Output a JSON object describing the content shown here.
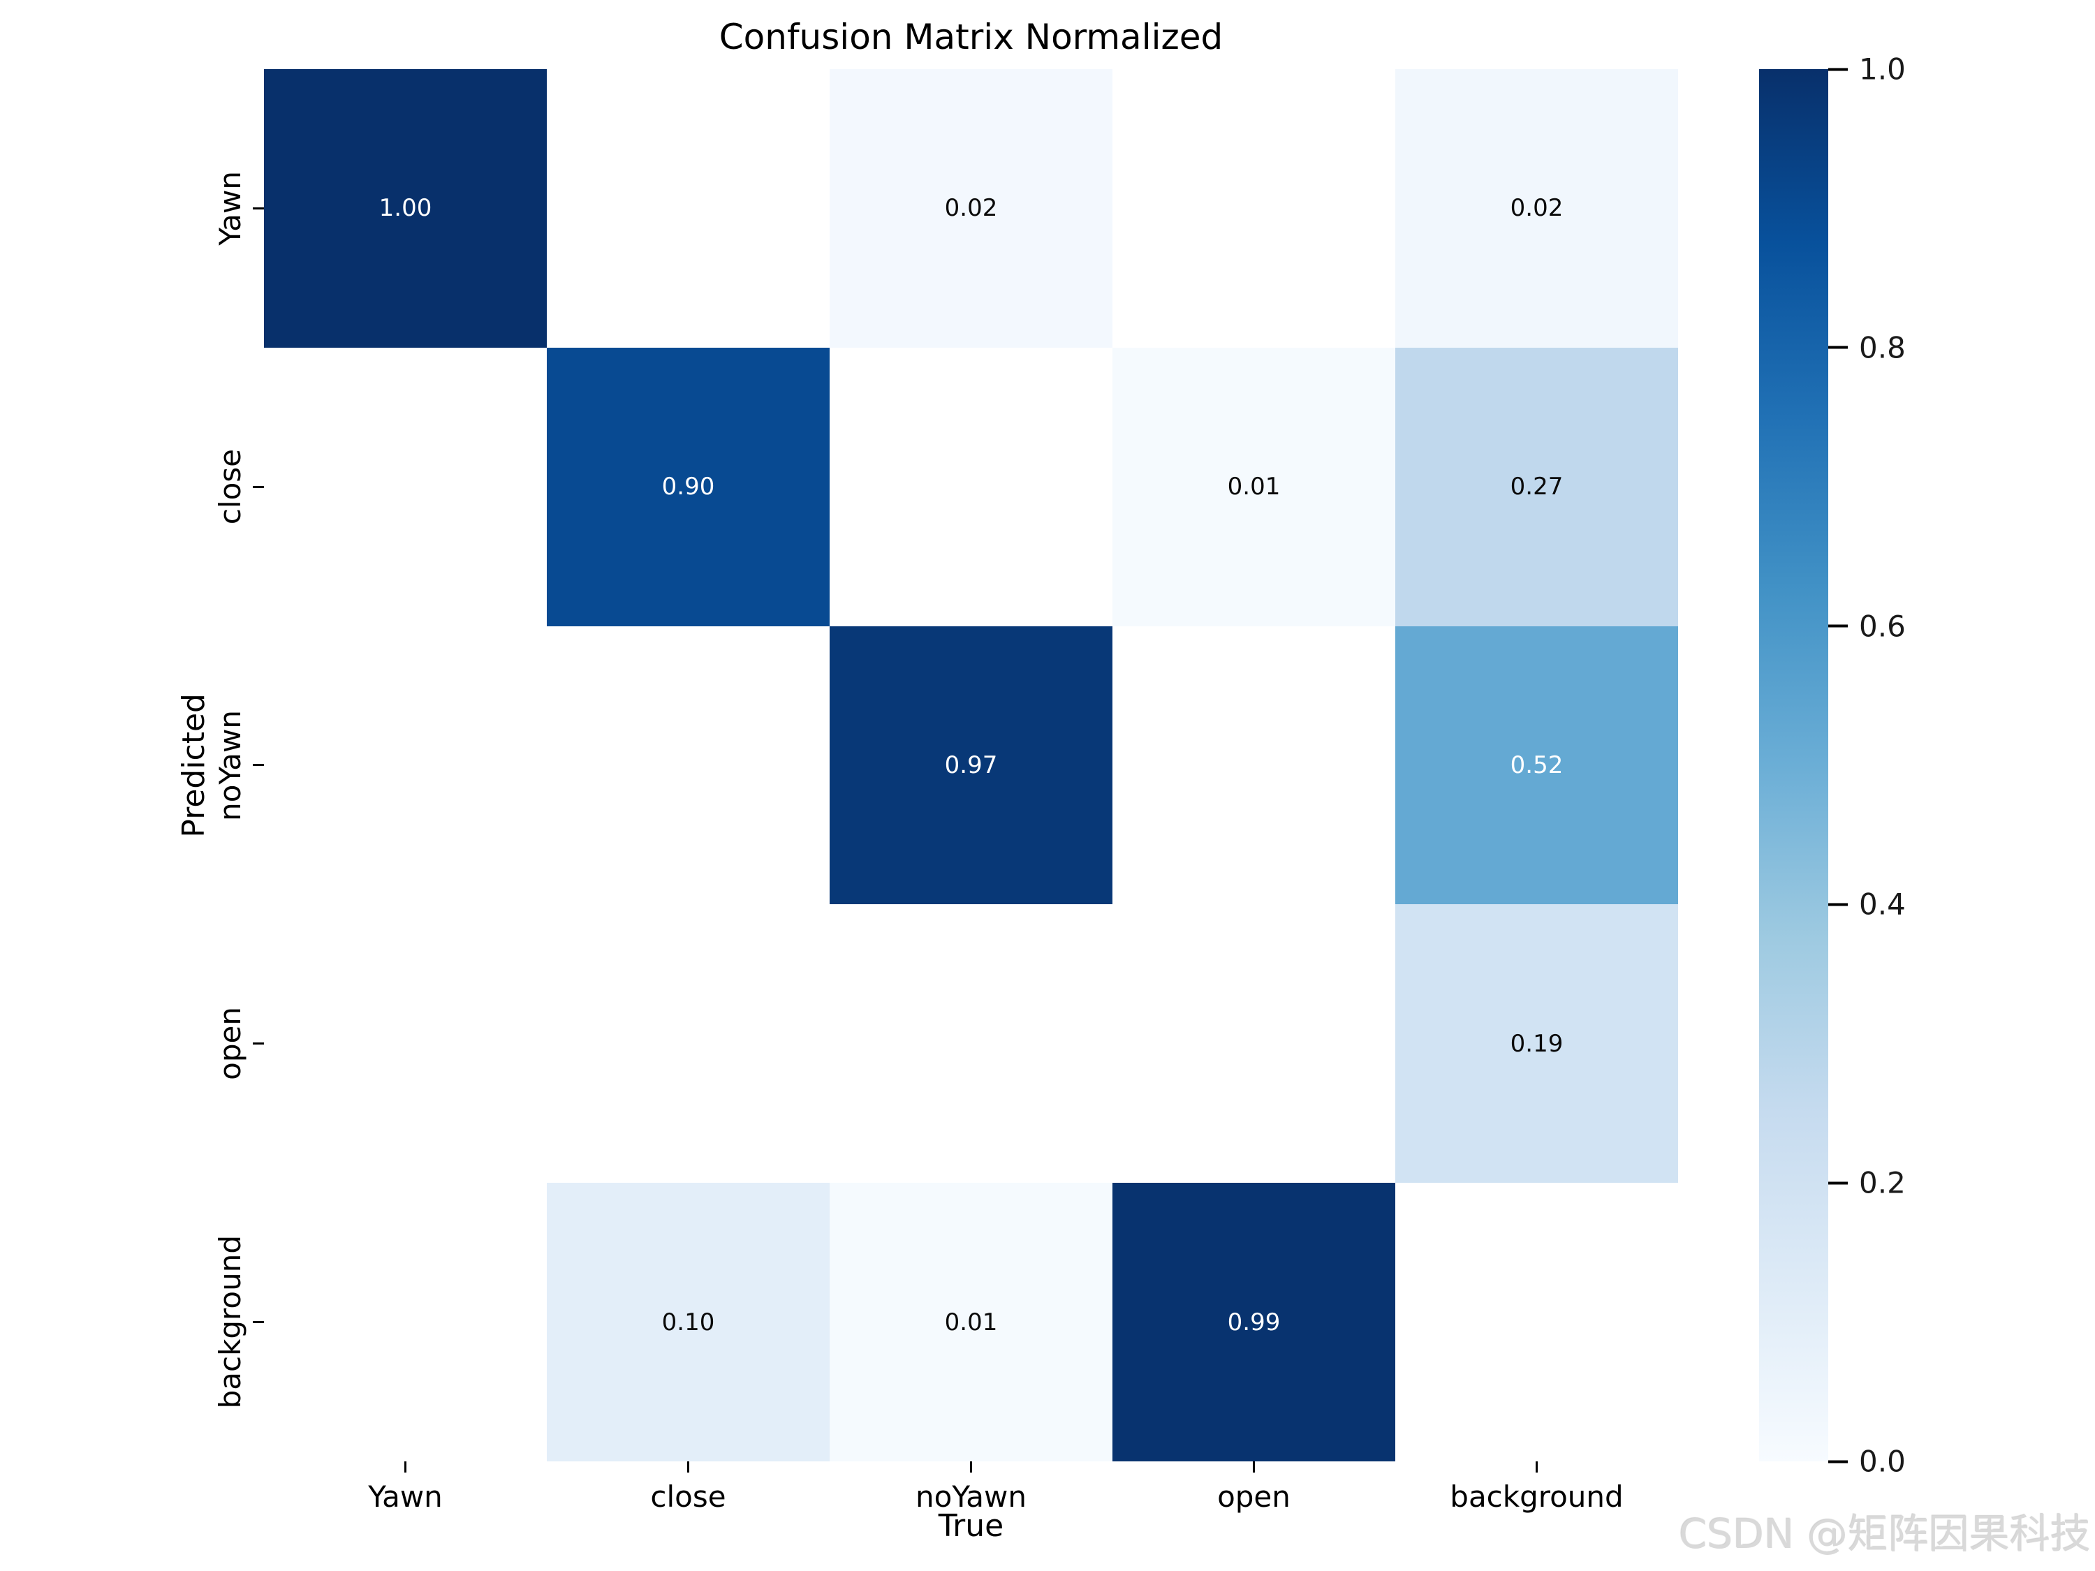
{
  "title": "Confusion Matrix Normalized",
  "watermark": "CSDN @矩阵因果科技",
  "chart_data": {
    "type": "heatmap",
    "title": "Confusion Matrix Normalized",
    "xlabel": "True",
    "ylabel": "Predicted",
    "x_categories": [
      "Yawn",
      "close",
      "noYawn",
      "open",
      "background"
    ],
    "y_categories": [
      "Yawn",
      "close",
      "noYawn",
      "open",
      "background"
    ],
    "matrix": [
      [
        1.0,
        null,
        0.02,
        null,
        0.02
      ],
      [
        null,
        0.9,
        null,
        0.01,
        0.27
      ],
      [
        null,
        null,
        0.97,
        null,
        0.52
      ],
      [
        null,
        null,
        null,
        null,
        0.19
      ],
      [
        null,
        0.1,
        0.01,
        0.99,
        null
      ]
    ],
    "colormap": "Blues",
    "grid": false,
    "cells": [
      {
        "row": 0,
        "col": 0,
        "label": "1.00",
        "bg": "#08306b",
        "fg": "#ffffff"
      },
      {
        "row": 0,
        "col": 1,
        "label": "",
        "bg": "#ffffff",
        "fg": "#000000"
      },
      {
        "row": 0,
        "col": 2,
        "label": "0.02",
        "bg": "#f3f8fe",
        "fg": "#0a0a0a"
      },
      {
        "row": 0,
        "col": 3,
        "label": "",
        "bg": "#ffffff",
        "fg": "#000000"
      },
      {
        "row": 0,
        "col": 4,
        "label": "0.02",
        "bg": "#f1f7fd",
        "fg": "#0a0a0a"
      },
      {
        "row": 1,
        "col": 0,
        "label": "",
        "bg": "#ffffff",
        "fg": "#000000"
      },
      {
        "row": 1,
        "col": 1,
        "label": "0.90",
        "bg": "#084a92",
        "fg": "#ffffff"
      },
      {
        "row": 1,
        "col": 2,
        "label": "",
        "bg": "#ffffff",
        "fg": "#000000"
      },
      {
        "row": 1,
        "col": 3,
        "label": "0.01",
        "bg": "#f5fafe",
        "fg": "#0a0a0a"
      },
      {
        "row": 1,
        "col": 4,
        "label": "0.27",
        "bg": "#c0d8ed",
        "fg": "#0a0a0a"
      },
      {
        "row": 2,
        "col": 0,
        "label": "",
        "bg": "#ffffff",
        "fg": "#000000"
      },
      {
        "row": 2,
        "col": 1,
        "label": "",
        "bg": "#ffffff",
        "fg": "#000000"
      },
      {
        "row": 2,
        "col": 2,
        "label": "0.97",
        "bg": "#083877",
        "fg": "#ffffff"
      },
      {
        "row": 2,
        "col": 3,
        "label": "",
        "bg": "#ffffff",
        "fg": "#000000"
      },
      {
        "row": 2,
        "col": 4,
        "label": "0.52",
        "bg": "#64a9d3",
        "fg": "#ffffff"
      },
      {
        "row": 3,
        "col": 0,
        "label": "",
        "bg": "#ffffff",
        "fg": "#000000"
      },
      {
        "row": 3,
        "col": 1,
        "label": "",
        "bg": "#ffffff",
        "fg": "#000000"
      },
      {
        "row": 3,
        "col": 2,
        "label": "",
        "bg": "#ffffff",
        "fg": "#000000"
      },
      {
        "row": 3,
        "col": 3,
        "label": "",
        "bg": "#ffffff",
        "fg": "#000000"
      },
      {
        "row": 3,
        "col": 4,
        "label": "0.19",
        "bg": "#d1e3f3",
        "fg": "#0a0a0a"
      },
      {
        "row": 4,
        "col": 0,
        "label": "",
        "bg": "#ffffff",
        "fg": "#000000"
      },
      {
        "row": 4,
        "col": 1,
        "label": "0.10",
        "bg": "#e3eef9",
        "fg": "#0a0a0a"
      },
      {
        "row": 4,
        "col": 2,
        "label": "0.01",
        "bg": "#f5fafe",
        "fg": "#0a0a0a"
      },
      {
        "row": 4,
        "col": 3,
        "label": "0.99",
        "bg": "#08336f",
        "fg": "#ffffff"
      },
      {
        "row": 4,
        "col": 4,
        "label": "",
        "bg": "#ffffff",
        "fg": "#000000"
      }
    ],
    "colorbar": {
      "min": 0.0,
      "max": 1.0,
      "tick_labels": [
        "1.0",
        "0.8",
        "0.6",
        "0.4",
        "0.2",
        "0.0"
      ],
      "gradient_stops_top_to_bottom": [
        "#08306b",
        "#08519c",
        "#2171b5",
        "#4292c6",
        "#6baed6",
        "#9ecae1",
        "#c6dbef",
        "#deebf7",
        "#f7fbff"
      ]
    }
  }
}
